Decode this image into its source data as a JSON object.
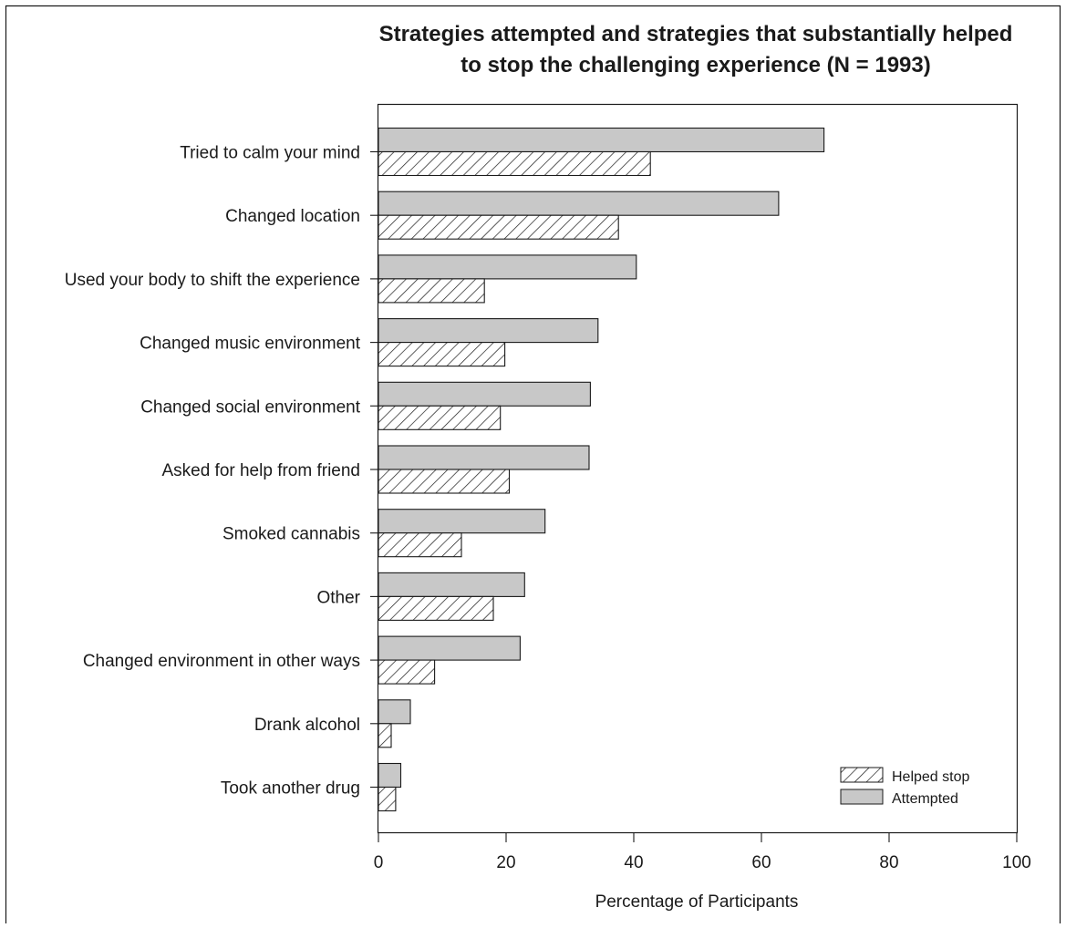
{
  "chart_data": {
    "type": "bar",
    "orientation": "horizontal",
    "title_lines": [
      "Strategies attempted and strategies that substantially helped",
      "to stop the challenging experience (N = 1993)"
    ],
    "xlabel": "Percentage of Participants",
    "ylabel": "",
    "xlim": [
      0,
      100
    ],
    "xticks": [
      0,
      20,
      40,
      60,
      80,
      100
    ],
    "grid": false,
    "legend_position": "bottom-right",
    "categories": [
      "Tried to calm your mind",
      "Changed location",
      "Used your body to shift the experience",
      "Changed music environment",
      "Changed social environment",
      "Asked for help from friend",
      "Smoked cannabis",
      "Other",
      "Changed environment in other ways",
      "Drank alcohol",
      "Took another drug"
    ],
    "series": [
      {
        "name": "Attempted",
        "style": "solid-gray",
        "color": "#c8c8c8",
        "values": [
          69.8,
          62.7,
          40.4,
          34.4,
          33.2,
          33.0,
          26.1,
          22.9,
          22.2,
          5.0,
          3.5
        ]
      },
      {
        "name": "Helped stop",
        "style": "diagonal-hatch",
        "color": "#ffffff",
        "values": [
          42.6,
          37.6,
          16.6,
          19.8,
          19.1,
          20.5,
          13.0,
          18.0,
          8.8,
          2.0,
          2.7
        ]
      }
    ],
    "legend_order": [
      "Helped stop",
      "Attempted"
    ]
  },
  "colors": {
    "bar_stroke": "#1a1a1a",
    "attempted_fill": "#c8c8c8",
    "hatch_line": "#1a1a1a",
    "frame": "#1a1a1a"
  }
}
